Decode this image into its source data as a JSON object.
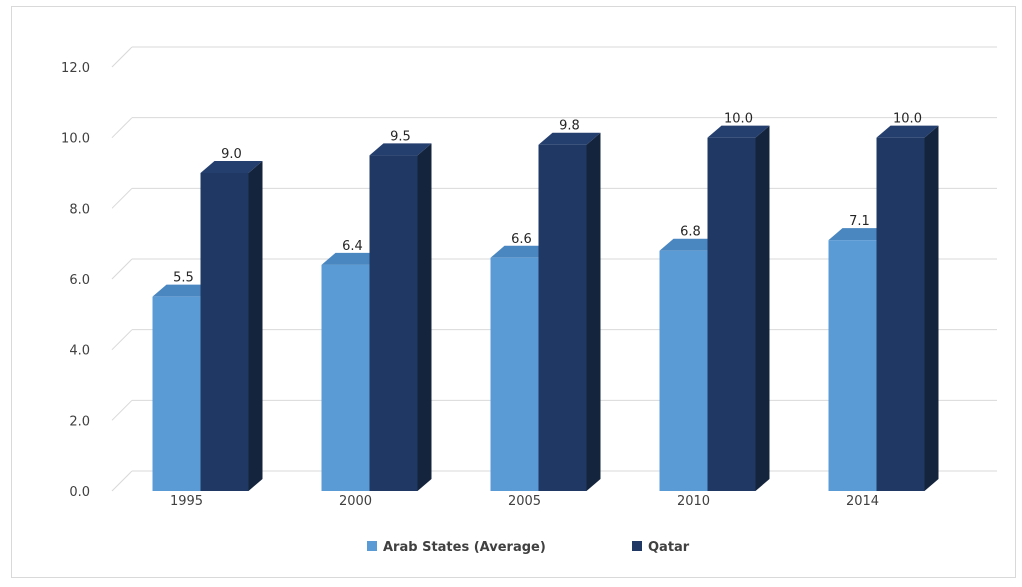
{
  "chart_data": {
    "type": "bar",
    "style": "3d-clustered-column",
    "categories": [
      "1995",
      "2000",
      "2005",
      "2010",
      "2014"
    ],
    "series": [
      {
        "name": "Arab States (Average)",
        "values": [
          5.5,
          6.4,
          6.6,
          6.8,
          7.1
        ],
        "color": "#5b9bd5",
        "side_color": "#3f73a6",
        "top_color": "#4a86c0"
      },
      {
        "name": "Qatar",
        "values": [
          9.0,
          9.5,
          9.8,
          10.0,
          10.0
        ],
        "color": "#1f3864",
        "side_color": "#15243d",
        "top_color": "#243f6e"
      }
    ],
    "data_labels": [
      [
        "5.5",
        "6.4",
        "6.6",
        "6.8",
        "7.1"
      ],
      [
        "9.0",
        "9.5",
        "9.8",
        "10.0",
        "10.0"
      ]
    ],
    "ylim": [
      0,
      12
    ],
    "y_ticks": [
      "0.0",
      "2.0",
      "4.0",
      "6.0",
      "8.0",
      "10.0",
      "12.0"
    ],
    "y_tick_values": [
      0,
      2,
      4,
      6,
      8,
      10,
      12
    ],
    "grid": true,
    "grid_color": "#d9d9d9",
    "legend_position": "bottom",
    "title": "",
    "xlabel": "",
    "ylabel": ""
  }
}
